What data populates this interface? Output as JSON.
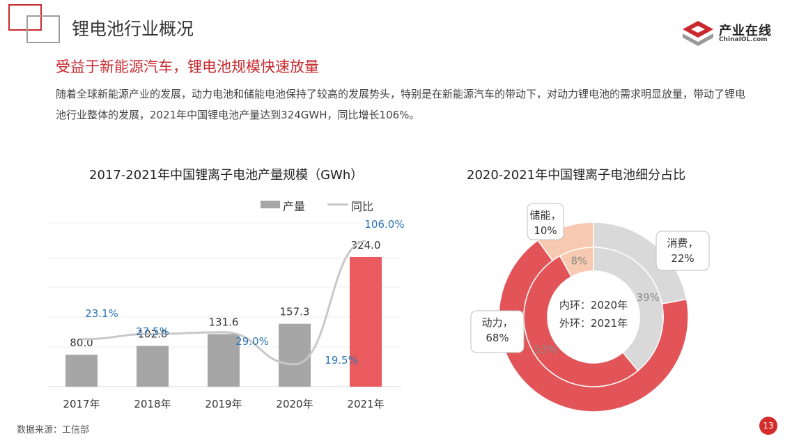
{
  "header": {
    "title": "锂电池行业概况",
    "brand_cn": "产业在线",
    "brand_en": "ChinaIOL.com"
  },
  "subtitle": "受益于新能源汽车，锂电池规模快速放量",
  "body_text": "随着全球新能源产业的发展，动力电池和储能电池保持了较高的发展势头，特别是在新能源汽车的带动下，对动力锂电池的需求明显放量，带动了锂电池行业整体的发展，2021年中国锂电池产量达到324GWH，同比增长106%。",
  "footer": {
    "source": "数据来源：工信部",
    "page": "13"
  },
  "colors": {
    "accent": "#c8282e",
    "bar": "#a6a6a6",
    "bar_highlight": "#e95b5f",
    "line": "#c8c8c8",
    "yoy_label": "#2e75b6",
    "donut_consumer": "#d9d9d9",
    "donut_power": "#e35458",
    "donut_storage": "#f7c9b0"
  },
  "chart_data": [
    {
      "type": "bar",
      "title": "2017-2021年中国锂离子电池产量规模（GWh）",
      "categories": [
        "2017年",
        "2018年",
        "2019年",
        "2020年",
        "2021年"
      ],
      "series": [
        {
          "name": "产量",
          "values": [
            80.0,
            102.0,
            131.6,
            157.3,
            324.0
          ],
          "labels": [
            "80.0",
            "102.0",
            "131.6",
            "157.3",
            "324.0"
          ]
        },
        {
          "name": "同比",
          "values": [
            23.1,
            27.5,
            29.0,
            19.5,
            106.0
          ],
          "labels": [
            "23.1%",
            "27.5%",
            "29.0%",
            "19.5%",
            "106.0%"
          ]
        }
      ],
      "legend": "top-right",
      "grid": true
    },
    {
      "type": "pie",
      "title": "2020-2021年中国锂离子电池细分占比",
      "center_lines": [
        "内环：2020年",
        "外环：2021年"
      ],
      "outer_2021": [
        {
          "name": "消费",
          "value": 22,
          "callout": [
            "消费，",
            "22%"
          ]
        },
        {
          "name": "动力",
          "value": 68,
          "callout": [
            "动力，",
            "68%"
          ]
        },
        {
          "name": "储能",
          "value": 10,
          "callout": [
            "储能，",
            "10%"
          ]
        }
      ],
      "inner_2020": [
        {
          "name": "消费",
          "value": 39,
          "label": "39%"
        },
        {
          "name": "动力",
          "value": 53,
          "label": "53%"
        },
        {
          "name": "储能",
          "value": 8,
          "label": "8%"
        }
      ]
    }
  ]
}
